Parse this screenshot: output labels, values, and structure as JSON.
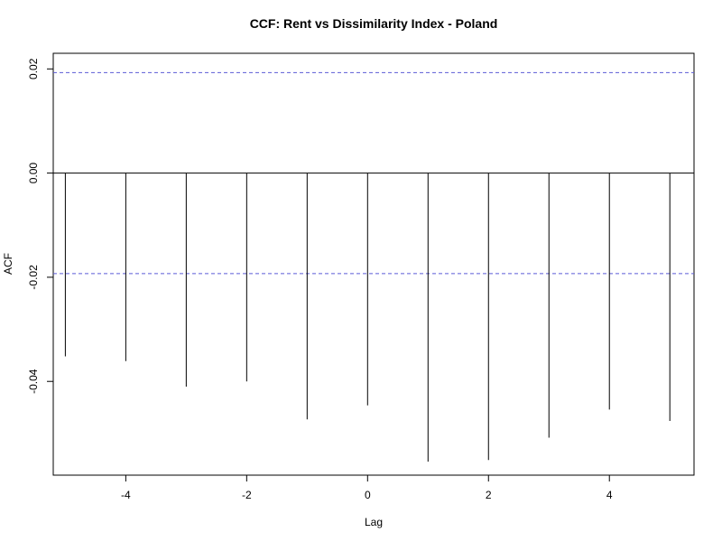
{
  "chart_data": {
    "type": "bar",
    "title": "CCF: Rent vs Dissimilarity Index - Poland",
    "xlabel": "Lag",
    "ylabel": "ACF",
    "x": [
      -5,
      -4,
      -3,
      -2,
      -1,
      0,
      1,
      2,
      3,
      4,
      5
    ],
    "values": [
      -0.0352,
      -0.0361,
      -0.041,
      -0.04,
      -0.0473,
      -0.0446,
      -0.0554,
      -0.0551,
      -0.0508,
      -0.0454,
      -0.0476
    ],
    "xlim": [
      -5.2,
      5.4
    ],
    "ylim": [
      -0.058,
      0.023
    ],
    "x_ticks": [
      -4,
      -2,
      0,
      2,
      4
    ],
    "x_tick_labels": [
      "-4",
      "-2",
      "0",
      "2",
      "4"
    ],
    "y_ticks": [
      -0.04,
      -0.02,
      0.0,
      0.02
    ],
    "y_tick_labels": [
      "-0.04",
      "-0.02",
      "0.00",
      "0.02"
    ],
    "confidence_band": 0.0193,
    "zero_line": true,
    "grid": false,
    "colors": {
      "bars": "#000000",
      "confidence_lines": "#5b5bd6",
      "axes": "#000000"
    }
  }
}
